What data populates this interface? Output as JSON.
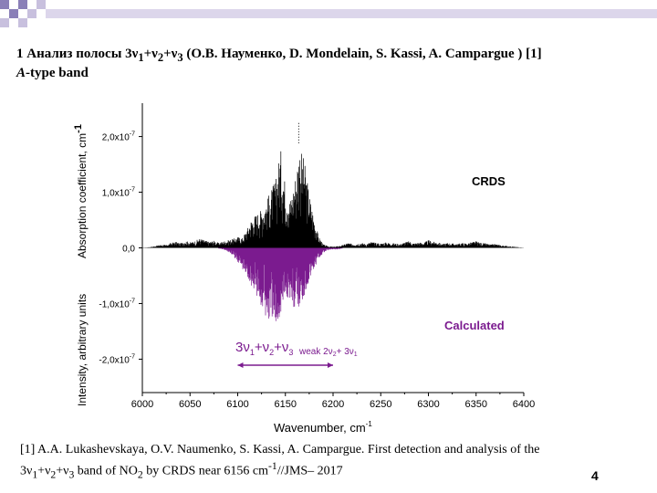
{
  "slide": {
    "title_prefix": "1 Анализ полосы 3ν",
    "title_sub1": "1",
    "title_plus1": "+ν",
    "title_sub2": "2",
    "title_plus2": "+ν",
    "title_sub3": "3",
    "title_suffix": " (О.В. Науменко, D. Mondelain, S. Kassi, A. Campargue ) [1]",
    "subtitle_italic": "A",
    "subtitle_rest": "-type band",
    "page_number": "4"
  },
  "reference": {
    "line1": "[1] A.A. Lukashevskaya, O.V. Naumenko, S. Kassi, A. Campargue. First detection and analysis of the",
    "l2_a": "3ν",
    "l2_s1": "1",
    "l2_b": "+ν",
    "l2_s2": "2",
    "l2_c": "+ν",
    "l2_s3": "3",
    "l2_d": " band of NO",
    "l2_s4": "2",
    "l2_e": " by CRDS near 6156 cm",
    "l2_sup": "-1",
    "l2_f": "//JMS– 2017"
  },
  "chart_data": {
    "type": "line",
    "xlabel": "Wavenumber, cm",
    "xlabel_sup": "-1",
    "ylabel_top": "Absorption coefficient, cm",
    "ylabel_top_sup": "-1",
    "ylabel_bottom": "Intensity, arbitrary units",
    "xlim": [
      6000,
      6400
    ],
    "ylim": [
      -2.6e-07,
      2.6e-07
    ],
    "x_ticks": [
      "6000",
      "6050",
      "6100",
      "6150",
      "6200",
      "6250",
      "6300",
      "6350",
      "6400"
    ],
    "y_tick_labels": [
      {
        "value": 2e-07,
        "label": "2,0x10",
        "exp": "-7"
      },
      {
        "value": 1e-07,
        "label": "1,0x10",
        "exp": "-7"
      },
      {
        "value": 0,
        "label": "0,0",
        "exp": ""
      },
      {
        "value": -1e-07,
        "label": "-1,0x10",
        "exp": "-7"
      },
      {
        "value": -2e-07,
        "label": "-2,0x10",
        "exp": "-7"
      }
    ],
    "series": [
      {
        "name": "CRDS",
        "color": "#000000",
        "x": [
          6000,
          6005,
          6010,
          6015,
          6020,
          6025,
          6030,
          6035,
          6040,
          6045,
          6050,
          6055,
          6060,
          6065,
          6070,
          6075,
          6080,
          6085,
          6090,
          6095,
          6100,
          6105,
          6110,
          6115,
          6120,
          6125,
          6130,
          6135,
          6140,
          6145,
          6150,
          6155,
          6160,
          6165,
          6170,
          6175,
          6180,
          6185,
          6190,
          6195,
          6200,
          6205,
          6210,
          6215,
          6220,
          6225,
          6230,
          6235,
          6240,
          6245,
          6250,
          6255,
          6260,
          6265,
          6270,
          6275,
          6280,
          6285,
          6290,
          6295,
          6300,
          6305,
          6310,
          6315,
          6320,
          6325,
          6330,
          6335,
          6340,
          6345,
          6350,
          6355,
          6360,
          6365,
          6370,
          6375,
          6380,
          6385,
          6390,
          6395,
          6400
        ],
        "values": [
          5e-10,
          1e-09,
          2e-09,
          4e-09,
          6e-09,
          5e-09,
          9e-09,
          1.1e-08,
          8e-09,
          1.3e-08,
          1e-08,
          1.2e-08,
          1.7e-08,
          1.4e-08,
          1.1e-08,
          1.3e-08,
          9e-09,
          1.2e-08,
          1.4e-08,
          1.6e-08,
          2e-08,
          1.8e-08,
          3.5e-08,
          5.5e-08,
          6.2e-08,
          7e-08,
          8.5e-08,
          1.05e-07,
          1.25e-07,
          1.8e-07,
          1.15e-07,
          8.5e-08,
          1.25e-07,
          1.85e-07,
          1.55e-07,
          1e-07,
          5.5e-08,
          2e-08,
          6e-09,
          3e-09,
          2e-09,
          3e-09,
          5e-09,
          9e-09,
          7e-09,
          8e-09,
          9e-09,
          7e-09,
          1.1e-08,
          9e-09,
          8e-09,
          1e-08,
          9e-09,
          8e-09,
          7e-09,
          1e-08,
          1.2e-08,
          8e-09,
          1e-08,
          9e-09,
          1.4e-08,
          1.1e-08,
          1e-08,
          7e-09,
          9e-09,
          8e-09,
          7e-09,
          9e-09,
          8e-09,
          1e-08,
          1.2e-08,
          9e-09,
          8e-09,
          6e-09,
          7e-09,
          5e-09,
          4e-09,
          3e-09,
          2e-09,
          1e-09,
          5e-10
        ]
      },
      {
        "name": "Calculated",
        "color": "#7b1b8f",
        "x": [
          6080,
          6085,
          6090,
          6095,
          6100,
          6105,
          6110,
          6115,
          6120,
          6125,
          6130,
          6135,
          6140,
          6145,
          6150,
          6155,
          6160,
          6165,
          6170,
          6175,
          6180,
          6185,
          6190,
          6195,
          6200,
          6205,
          6210
        ],
        "values": [
          -1e-09,
          -3e-09,
          -7e-09,
          -1.5e-08,
          -2.5e-08,
          -4e-08,
          -5.5e-08,
          -7e-08,
          -9e-08,
          -1.1e-07,
          -1.3e-07,
          -1.4e-07,
          -1.45e-07,
          -1.2e-07,
          -9e-08,
          -9.5e-08,
          -1.15e-07,
          -1.1e-07,
          -8.5e-08,
          -6e-08,
          -3.8e-08,
          -2e-08,
          -9e-09,
          -4e-09,
          -3e-09,
          -3e-09,
          -1e-09
        ]
      }
    ],
    "labels": {
      "crds": "CRDS",
      "calculated": "Calculated",
      "band_main": "3ν",
      "band_sub1": "1",
      "band_plus1": "+ν",
      "band_sub2": "2",
      "band_plus2": "+ν",
      "band_sub3": "3",
      "band_weak": "weak 2ν",
      "band_weak_sub": "2",
      "band_weak_plus": "+ 3ν",
      "band_weak_sub2": "1"
    },
    "band_range": [
      6100,
      6200
    ],
    "accent_color": "#7b1b8f"
  }
}
